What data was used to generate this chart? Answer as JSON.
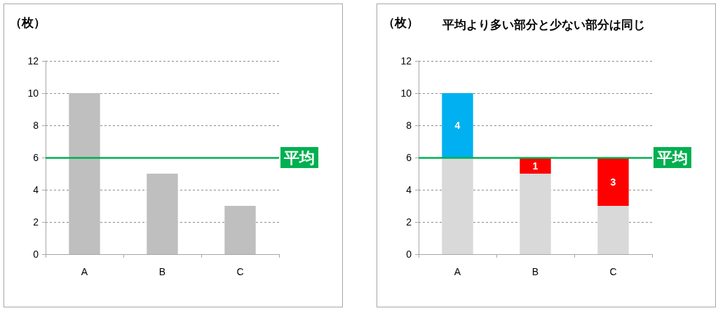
{
  "chart_data": [
    {
      "type": "bar",
      "ylabel": "（枚）",
      "categories": [
        "A",
        "B",
        "C"
      ],
      "values": [
        10,
        5,
        3
      ],
      "color": "#bfbfbf",
      "ylim": [
        0,
        12
      ],
      "yticks": [
        0,
        2,
        4,
        6,
        8,
        10,
        12
      ],
      "grid": "y",
      "ref_lines": [
        {
          "axis": "y",
          "value": 6,
          "label": "平均",
          "color": "#00b050"
        }
      ]
    },
    {
      "type": "bar",
      "title": "平均より多い部分と少ない部分は同じ",
      "ylabel": "（枚）",
      "categories": [
        "A",
        "B",
        "C"
      ],
      "stacked": true,
      "series": [
        {
          "color": "#d9d9d9",
          "values": [
            6,
            5,
            3
          ]
        },
        {
          "color": "#00b0f0",
          "values": [
            4,
            null,
            null
          ],
          "value_labels": [
            "4",
            null,
            null
          ]
        },
        {
          "color": "#ff0000",
          "values": [
            null,
            1,
            3
          ],
          "value_labels": [
            null,
            "1",
            "3"
          ]
        }
      ],
      "ylim": [
        0,
        12
      ],
      "yticks": [
        0,
        2,
        4,
        6,
        8,
        10,
        12
      ],
      "grid": "y",
      "ref_lines": [
        {
          "axis": "y",
          "value": 6,
          "label": "平均",
          "color": "#00b050"
        }
      ]
    }
  ]
}
